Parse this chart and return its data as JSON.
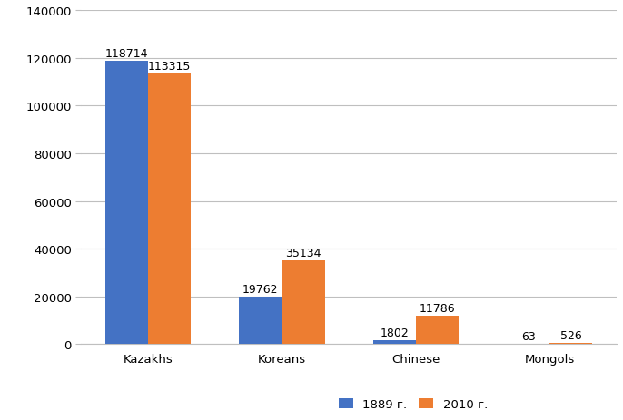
{
  "categories": [
    "Kazakhs",
    "Koreans",
    "Chinese",
    "Mongols"
  ],
  "series": {
    "1889 г.": [
      118714,
      19762,
      1802,
      63
    ],
    "2010 г.": [
      113315,
      35134,
      11786,
      526
    ]
  },
  "colors": {
    "1889 г.": "#4472C4",
    "2010 г.": "#ED7D31"
  },
  "ylim": [
    0,
    140000
  ],
  "yticks": [
    0,
    20000,
    40000,
    60000,
    80000,
    100000,
    120000,
    140000
  ],
  "bar_width": 0.32,
  "background_color": "#ffffff",
  "grid_color": "#bfbfbf",
  "label_fontsize": 9,
  "tick_fontsize": 9.5,
  "legend_fontsize": 9.5
}
